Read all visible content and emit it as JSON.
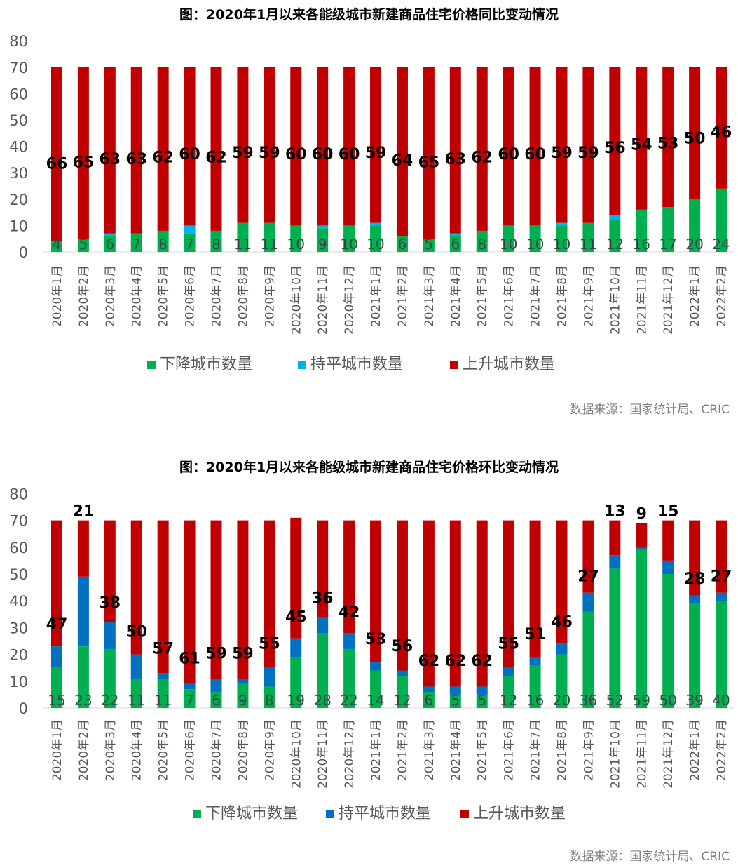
{
  "charts": [
    {
      "title": "图：2020年1月以来各能级城市新建商品住宅价格同比变动情况",
      "source": "数据来源：国家统计局、CRIC"
    },
    {
      "title": "图：2020年1月以来各能级城市新建商品住宅价格环比变动情况",
      "source": "数据来源：国家统计局、CRIC"
    }
  ],
  "chart_data": [
    {
      "type": "bar",
      "stacked": true,
      "title": "图：2020年1月以来各能级城市新建商品住宅价格同比变动情况",
      "categories": [
        "2020年1月",
        "2020年2月",
        "2020年3月",
        "2020年4月",
        "2020年5月",
        "2020年6月",
        "2020年7月",
        "2020年8月",
        "2020年9月",
        "2020年10月",
        "2020年11月",
        "2020年12月",
        "2021年1月",
        "2021年2月",
        "2021年3月",
        "2021年4月",
        "2021年5月",
        "2021年6月",
        "2021年7月",
        "2021年8月",
        "2021年9月",
        "2021年10月",
        "2021年11月",
        "2021年12月",
        "2022年1月",
        "2022年2月"
      ],
      "series": [
        {
          "name": "下降城市数量",
          "color": "#00b050",
          "values": [
            4,
            5,
            6,
            7,
            8,
            7,
            8,
            11,
            11,
            10,
            9,
            10,
            10,
            6,
            5,
            6,
            8,
            10,
            10,
            10,
            11,
            12,
            16,
            17,
            20,
            24
          ]
        },
        {
          "name": "持平城市数量",
          "color": "#00b0f0",
          "values": [
            0,
            0,
            1,
            0,
            0,
            3,
            0,
            0,
            0,
            0,
            1,
            0,
            1,
            0,
            0,
            1,
            0,
            0,
            0,
            1,
            0,
            2,
            0,
            0,
            0,
            0
          ]
        },
        {
          "name": "上升城市数量",
          "color": "#c00000",
          "values": [
            66,
            65,
            63,
            63,
            62,
            60,
            62,
            59,
            59,
            60,
            60,
            60,
            59,
            64,
            65,
            63,
            62,
            60,
            60,
            59,
            59,
            56,
            54,
            53,
            50,
            46
          ]
        }
      ],
      "ylim": [
        0,
        80
      ],
      "yticks": [
        0,
        10,
        20,
        30,
        40,
        50,
        60,
        70,
        80
      ],
      "grid": false,
      "legend": "bottom"
    },
    {
      "type": "bar",
      "stacked": true,
      "title": "图：2020年1月以来各能级城市新建商品住宅价格环比变动情况",
      "categories": [
        "2020年1月",
        "2020年2月",
        "2020年3月",
        "2020年4月",
        "2020年5月",
        "2020年6月",
        "2020年7月",
        "2020年8月",
        "2020年9月",
        "2020年10月",
        "2020年11月",
        "2020年12月",
        "2021年1月",
        "2021年2月",
        "2021年3月",
        "2021年4月",
        "2021年5月",
        "2021年6月",
        "2021年7月",
        "2021年8月",
        "2021年9月",
        "2021年10月",
        "2021年11月",
        "2021年12月",
        "2022年1月",
        "2022年2月"
      ],
      "series": [
        {
          "name": "下降城市数量",
          "color": "#00b050",
          "values": [
            15,
            23,
            22,
            11,
            11,
            7,
            6,
            9,
            8,
            19,
            28,
            22,
            14,
            12,
            6,
            5,
            5,
            12,
            16,
            20,
            36,
            52,
            59,
            50,
            39,
            40
          ]
        },
        {
          "name": "持平城市数量",
          "color": "#0070c0",
          "values": [
            8,
            26,
            10,
            9,
            2,
            2,
            5,
            2,
            7,
            7,
            6,
            6,
            3,
            2,
            2,
            3,
            3,
            3,
            3,
            4,
            7,
            5,
            1,
            5,
            3,
            3
          ]
        },
        {
          "name": "上升城市数量",
          "color": "#c00000",
          "values": [
            47,
            21,
            38,
            50,
            57,
            61,
            59,
            59,
            55,
            45,
            36,
            42,
            53,
            56,
            62,
            62,
            62,
            55,
            51,
            46,
            27,
            13,
            9,
            15,
            28,
            27
          ]
        }
      ],
      "ylim": [
        0,
        80
      ],
      "yticks": [
        0,
        10,
        20,
        30,
        40,
        50,
        60,
        70,
        80
      ],
      "grid": false,
      "legend": "bottom"
    }
  ]
}
